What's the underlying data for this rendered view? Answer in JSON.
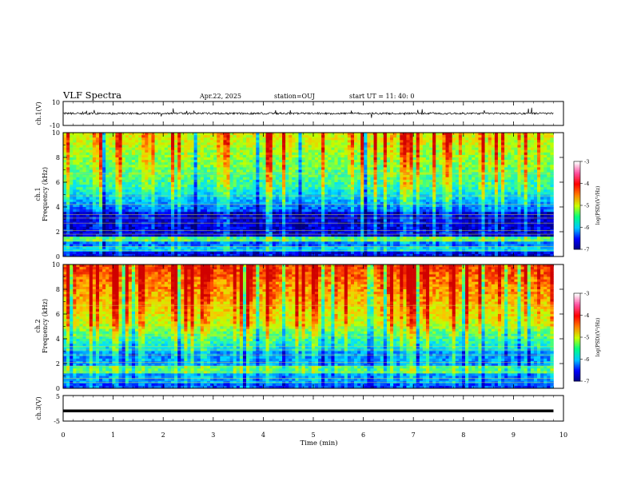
{
  "header": {
    "title": "VLF Spectra",
    "date": "Apr.22, 2025",
    "station": "station=OUJ",
    "start": "start  UT =   11: 40: 0"
  },
  "chart_data": [
    {
      "id": "ch1-waveform",
      "type": "line",
      "ylabel": "ch.1(V)",
      "ylim": [
        -10,
        10
      ],
      "yticks": [
        10,
        -10
      ],
      "xlim": [
        0,
        10
      ],
      "baseline": 0,
      "color": "#000000"
    },
    {
      "id": "ch1-spectrogram",
      "type": "heatmap",
      "ylabel_line1": "ch.1",
      "ylabel_line2": "Frequency (kHz)",
      "ylim": [
        0,
        10
      ],
      "yticks": [
        0,
        2,
        4,
        6,
        8,
        10
      ],
      "xlim": [
        0,
        10
      ],
      "colorbar": {
        "label": "log(PSD)(V²/Hz)",
        "range": [
          -7,
          -3
        ],
        "ticks": [
          -3,
          -4,
          -5,
          -6,
          -7
        ]
      }
    },
    {
      "id": "ch2-spectrogram",
      "type": "heatmap",
      "ylabel_line1": "ch.2",
      "ylabel_line2": "Frequency (kHz)",
      "ylim": [
        0,
        10
      ],
      "yticks": [
        0,
        2,
        4,
        6,
        8,
        10
      ],
      "xlim": [
        0,
        10
      ],
      "colorbar": {
        "label": "log(PSD)(V²/Hz)",
        "range": [
          -7,
          -3
        ],
        "ticks": [
          -3,
          -4,
          -5,
          -6,
          -7
        ]
      }
    },
    {
      "id": "ch3-waveform",
      "type": "line",
      "ylabel": "ch.3(V)",
      "ylim": [
        -5,
        5
      ],
      "yticks": [
        5,
        -5
      ],
      "xlim": [
        0,
        10
      ],
      "baseline": -1,
      "color": "#000000"
    }
  ],
  "xaxis": {
    "label": "Time (min)",
    "ticks": [
      0,
      1,
      2,
      3,
      4,
      5,
      6,
      7,
      8,
      9,
      10
    ],
    "data_end": 9.8
  },
  "colors": {
    "colormap": [
      "#00007f",
      "#0000ff",
      "#00c8ff",
      "#00ff80",
      "#c8ff00",
      "#ff8000",
      "#ff0000",
      "#ff4fa0",
      "#ffffff"
    ]
  }
}
